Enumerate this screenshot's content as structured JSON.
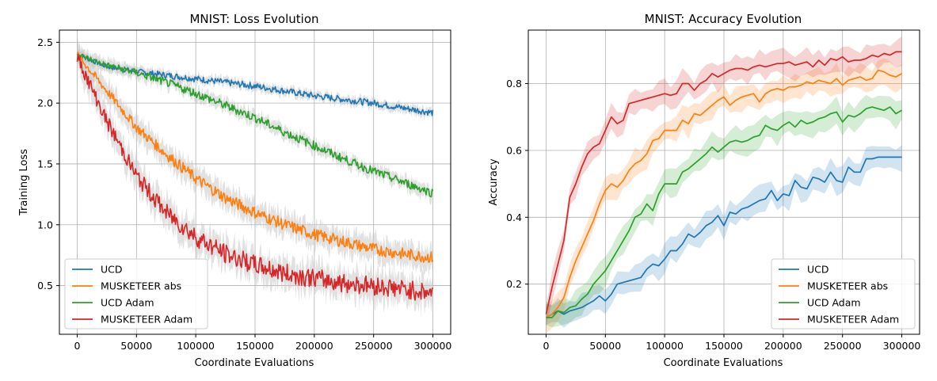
{
  "colors": {
    "UCD": "#1f77b4",
    "MUSKETEER abs": "#ff7f0e",
    "UCD Adam": "#2ca02c",
    "MUSKETEER Adam": "#d62728",
    "band_gray": "#c8c8c8",
    "grid": "#b0b0b0"
  },
  "chart_data": [
    {
      "type": "line",
      "title": "MNIST: Loss Evolution",
      "xlabel": "Coordinate Evaluations",
      "ylabel": "Training Loss",
      "xlim": [
        -15000,
        315000
      ],
      "ylim": [
        0.1,
        2.6
      ],
      "xticks": [
        0,
        50000,
        100000,
        150000,
        200000,
        250000,
        300000
      ],
      "yticks": [
        0.5,
        1.0,
        1.5,
        2.0,
        2.5
      ],
      "grid": true,
      "legend": "lower-left",
      "legend_entries": [
        "UCD",
        "MUSKETEER abs",
        "UCD Adam",
        "MUSKETEER Adam"
      ],
      "series": [
        {
          "name": "UCD",
          "x": [
            0,
            25000,
            50000,
            75000,
            100000,
            125000,
            150000,
            175000,
            200000,
            225000,
            250000,
            275000,
            300000
          ],
          "values": [
            2.4,
            2.3,
            2.26,
            2.23,
            2.2,
            2.17,
            2.14,
            2.1,
            2.06,
            2.03,
            2.0,
            1.96,
            1.92
          ],
          "noise": 0.012,
          "band": 0.035
        },
        {
          "name": "MUSKETEER abs",
          "x": [
            0,
            25000,
            50000,
            75000,
            100000,
            125000,
            150000,
            175000,
            200000,
            225000,
            250000,
            275000,
            300000
          ],
          "values": [
            2.4,
            2.1,
            1.8,
            1.58,
            1.38,
            1.22,
            1.1,
            1.0,
            0.92,
            0.86,
            0.8,
            0.76,
            0.73
          ],
          "noise": 0.022,
          "band": 0.09
        },
        {
          "name": "UCD Adam",
          "x": [
            0,
            25000,
            50000,
            75000,
            100000,
            125000,
            150000,
            175000,
            200000,
            225000,
            250000,
            275000,
            300000
          ],
          "values": [
            2.4,
            2.31,
            2.25,
            2.17,
            2.08,
            1.98,
            1.88,
            1.76,
            1.65,
            1.54,
            1.44,
            1.35,
            1.26
          ],
          "noise": 0.016,
          "band": 0.05
        },
        {
          "name": "MUSKETEER Adam",
          "x": [
            0,
            25000,
            50000,
            75000,
            100000,
            125000,
            150000,
            175000,
            200000,
            225000,
            250000,
            275000,
            300000
          ],
          "values": [
            2.38,
            1.85,
            1.4,
            1.1,
            0.9,
            0.76,
            0.67,
            0.6,
            0.56,
            0.52,
            0.5,
            0.47,
            0.44
          ],
          "noise": 0.035,
          "band": 0.11
        }
      ]
    },
    {
      "type": "line",
      "title": "MNIST: Accuracy Evolution",
      "xlabel": "Coordinate Evaluations",
      "ylabel": "Accuracy",
      "xlim": [
        -15000,
        315000
      ],
      "ylim": [
        0.05,
        0.96
      ],
      "xticks": [
        0,
        50000,
        100000,
        150000,
        200000,
        250000,
        300000
      ],
      "yticks": [
        0.2,
        0.4,
        0.6,
        0.8
      ],
      "grid": true,
      "legend": "lower-right",
      "legend_entries": [
        "UCD",
        "MUSKETEER abs",
        "UCD Adam",
        "MUSKETEER Adam"
      ],
      "series": [
        {
          "name": "UCD",
          "x": [
            0,
            5000,
            10000,
            15000,
            20000,
            25000,
            30000,
            35000,
            40000,
            45000,
            50000,
            55000,
            60000,
            65000,
            70000,
            75000,
            80000,
            85000,
            90000,
            95000,
            100000,
            105000,
            110000,
            115000,
            120000,
            125000,
            130000,
            135000,
            140000,
            145000,
            150000,
            155000,
            160000,
            165000,
            170000,
            175000,
            180000,
            185000,
            190000,
            195000,
            200000,
            205000,
            210000,
            215000,
            220000,
            225000,
            230000,
            235000,
            240000,
            245000,
            250000,
            255000,
            260000,
            265000,
            270000,
            275000,
            280000,
            285000,
            290000,
            295000,
            300000
          ],
          "values": [
            0.1,
            0.11,
            0.12,
            0.11,
            0.12,
            0.125,
            0.13,
            0.14,
            0.15,
            0.165,
            0.15,
            0.17,
            0.2,
            0.205,
            0.21,
            0.215,
            0.22,
            0.245,
            0.26,
            0.255,
            0.275,
            0.3,
            0.3,
            0.32,
            0.35,
            0.34,
            0.355,
            0.375,
            0.385,
            0.405,
            0.375,
            0.415,
            0.41,
            0.425,
            0.43,
            0.44,
            0.45,
            0.455,
            0.48,
            0.45,
            0.47,
            0.465,
            0.51,
            0.49,
            0.485,
            0.52,
            0.515,
            0.505,
            0.535,
            0.51,
            0.505,
            0.55,
            0.535,
            0.535,
            0.575,
            0.575,
            0.58,
            0.58,
            0.58,
            0.58,
            0.58
          ],
          "band": 0.035
        },
        {
          "name": "MUSKETEER abs",
          "x": [
            0,
            5000,
            10000,
            15000,
            20000,
            25000,
            30000,
            35000,
            40000,
            45000,
            50000,
            55000,
            60000,
            65000,
            70000,
            75000,
            80000,
            85000,
            90000,
            95000,
            100000,
            105000,
            110000,
            115000,
            120000,
            125000,
            130000,
            135000,
            140000,
            145000,
            150000,
            155000,
            160000,
            165000,
            170000,
            175000,
            180000,
            185000,
            190000,
            195000,
            200000,
            205000,
            210000,
            215000,
            220000,
            225000,
            230000,
            235000,
            240000,
            245000,
            250000,
            255000,
            260000,
            265000,
            270000,
            275000,
            280000,
            285000,
            290000,
            295000,
            300000
          ],
          "values": [
            0.1,
            0.11,
            0.13,
            0.16,
            0.22,
            0.27,
            0.31,
            0.35,
            0.39,
            0.44,
            0.48,
            0.5,
            0.49,
            0.51,
            0.54,
            0.56,
            0.57,
            0.59,
            0.63,
            0.635,
            0.66,
            0.66,
            0.66,
            0.69,
            0.68,
            0.71,
            0.705,
            0.72,
            0.735,
            0.75,
            0.76,
            0.735,
            0.75,
            0.76,
            0.765,
            0.77,
            0.745,
            0.77,
            0.78,
            0.785,
            0.78,
            0.79,
            0.79,
            0.795,
            0.805,
            0.8,
            0.81,
            0.805,
            0.8,
            0.815,
            0.795,
            0.81,
            0.815,
            0.82,
            0.81,
            0.815,
            0.84,
            0.835,
            0.825,
            0.82,
            0.83
          ],
          "band": 0.035
        },
        {
          "name": "UCD Adam",
          "x": [
            0,
            5000,
            10000,
            15000,
            20000,
            25000,
            30000,
            35000,
            40000,
            45000,
            50000,
            55000,
            60000,
            65000,
            70000,
            75000,
            80000,
            85000,
            90000,
            95000,
            100000,
            105000,
            110000,
            115000,
            120000,
            125000,
            130000,
            135000,
            140000,
            145000,
            150000,
            155000,
            160000,
            165000,
            170000,
            175000,
            180000,
            185000,
            190000,
            195000,
            200000,
            205000,
            210000,
            215000,
            220000,
            225000,
            230000,
            235000,
            240000,
            245000,
            250000,
            255000,
            260000,
            265000,
            270000,
            275000,
            280000,
            285000,
            290000,
            295000,
            300000
          ],
          "values": [
            0.1,
            0.1,
            0.12,
            0.115,
            0.13,
            0.135,
            0.155,
            0.17,
            0.2,
            0.22,
            0.24,
            0.27,
            0.3,
            0.33,
            0.36,
            0.4,
            0.41,
            0.44,
            0.42,
            0.47,
            0.5,
            0.5,
            0.5,
            0.535,
            0.545,
            0.56,
            0.575,
            0.59,
            0.61,
            0.595,
            0.61,
            0.625,
            0.63,
            0.625,
            0.63,
            0.64,
            0.645,
            0.675,
            0.665,
            0.66,
            0.675,
            0.685,
            0.67,
            0.69,
            0.68,
            0.685,
            0.695,
            0.7,
            0.71,
            0.715,
            0.685,
            0.705,
            0.7,
            0.71,
            0.725,
            0.73,
            0.725,
            0.72,
            0.73,
            0.71,
            0.72
          ],
          "band": 0.035
        },
        {
          "name": "MUSKETEER Adam",
          "x": [
            0,
            5000,
            10000,
            15000,
            20000,
            25000,
            30000,
            35000,
            40000,
            45000,
            50000,
            55000,
            60000,
            65000,
            70000,
            75000,
            80000,
            85000,
            90000,
            95000,
            100000,
            105000,
            110000,
            115000,
            120000,
            125000,
            130000,
            135000,
            140000,
            145000,
            150000,
            155000,
            160000,
            165000,
            170000,
            175000,
            180000,
            185000,
            190000,
            195000,
            200000,
            205000,
            210000,
            215000,
            220000,
            225000,
            230000,
            235000,
            240000,
            245000,
            250000,
            255000,
            260000,
            265000,
            270000,
            275000,
            280000,
            285000,
            290000,
            295000,
            300000
          ],
          "values": [
            0.11,
            0.19,
            0.26,
            0.33,
            0.46,
            0.5,
            0.55,
            0.59,
            0.61,
            0.62,
            0.66,
            0.7,
            0.68,
            0.69,
            0.74,
            0.745,
            0.75,
            0.755,
            0.76,
            0.765,
            0.77,
            0.765,
            0.77,
            0.8,
            0.8,
            0.78,
            0.8,
            0.81,
            0.83,
            0.82,
            0.83,
            0.84,
            0.845,
            0.845,
            0.84,
            0.85,
            0.855,
            0.85,
            0.855,
            0.86,
            0.86,
            0.865,
            0.855,
            0.86,
            0.865,
            0.85,
            0.87,
            0.855,
            0.875,
            0.87,
            0.88,
            0.865,
            0.87,
            0.87,
            0.875,
            0.885,
            0.88,
            0.89,
            0.885,
            0.895,
            0.895
          ],
          "band": 0.035
        }
      ]
    }
  ]
}
